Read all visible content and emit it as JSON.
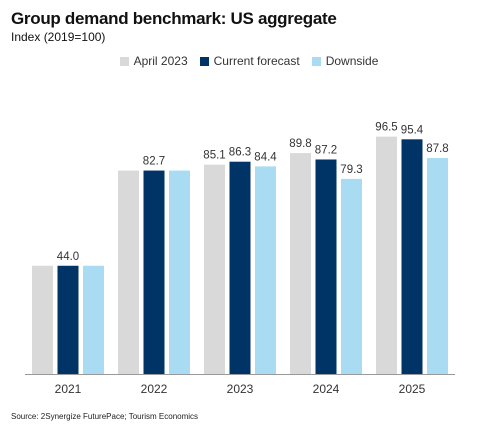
{
  "title": "Group demand benchmark: US aggregate",
  "subtitle": "Index (2019=100)",
  "source": "Source: 2Synergize FuturePace; Tourism Economics",
  "chart_data": {
    "type": "bar",
    "categories": [
      "2021",
      "2022",
      "2023",
      "2024",
      "2025"
    ],
    "series": [
      {
        "name": "April 2023",
        "color": "#d9d9d9",
        "values": [
          null,
          null,
          85.1,
          89.8,
          96.5
        ]
      },
      {
        "name": "Current forecast",
        "color": "#003366",
        "values": [
          44.0,
          82.7,
          86.3,
          87.2,
          95.4
        ]
      },
      {
        "name": "Downside",
        "color": "#a9dcf2",
        "values": [
          null,
          null,
          84.4,
          79.3,
          87.8
        ]
      }
    ],
    "bar_values": [
      [
        44.0,
        44.0,
        44.0
      ],
      [
        82.7,
        82.7,
        82.7
      ],
      [
        85.1,
        86.3,
        84.4
      ],
      [
        89.8,
        87.2,
        79.3
      ],
      [
        96.5,
        95.4,
        87.8
      ]
    ],
    "ylim": [
      0,
      100
    ],
    "legend_position": "top",
    "grid": false
  }
}
